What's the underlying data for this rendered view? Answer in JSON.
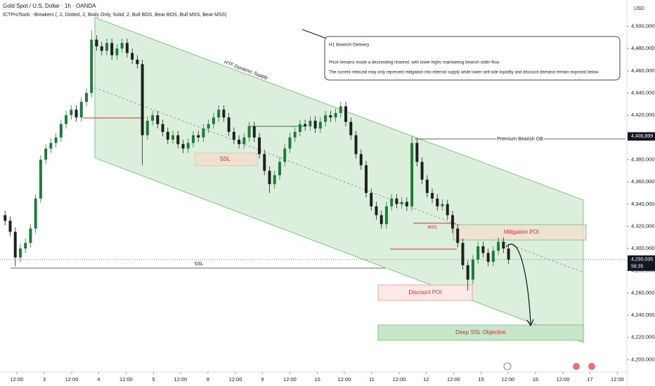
{
  "chart_data": {
    "type": "candlestick",
    "title": "Gold Spot / U.S. Dollar · 1h · OANDA",
    "subtitle": "ICTProTools - Breakers (, 2, Dotted, 2, Body Only, Solid, 2, Bull BOS, Bear BOS, Bull MSS, Bear MSS)",
    "currency": "USD",
    "up_color": "#1e7b3c",
    "down_color": "#1f1f1f",
    "open": [
      4330,
      4325,
      4315,
      4292,
      4300,
      4305,
      4318,
      4345,
      4380,
      4390,
      4395,
      4400,
      4412,
      4420,
      4425,
      4418,
      4432,
      4440,
      4488,
      4482,
      4478,
      4485,
      4474,
      4480,
      4485,
      4476,
      4470,
      4466,
      4402,
      4415,
      4420,
      4412,
      4405,
      4398,
      4402,
      4394,
      4390,
      4395,
      4402,
      4400,
      4408,
      4412,
      4418,
      4425,
      4418,
      4405,
      4398,
      4394,
      4400,
      4410,
      4400,
      4385,
      4370,
      4358,
      4366,
      4378,
      4390,
      4400,
      4405,
      4412,
      4410,
      4415,
      4408,
      4414,
      4420,
      4418,
      4422,
      4428,
      4414,
      4402,
      4385,
      4375,
      4350,
      4338,
      4330,
      4322,
      4338,
      4345,
      4340,
      4342,
      4338,
      4395,
      4378,
      4362,
      4350,
      4345,
      4338,
      4340,
      4330,
      4318,
      4305,
      4285,
      4272,
      4290,
      4302,
      4296,
      4288,
      4298,
      4306,
      4300
    ],
    "high": [
      4334,
      4329,
      4319,
      4304,
      4309,
      4322,
      4349,
      4384,
      4394,
      4399,
      4404,
      4416,
      4424,
      4429,
      4429,
      4436,
      4444,
      4496,
      4492,
      4486,
      4489,
      4489,
      4484,
      4489,
      4489,
      4480,
      4474,
      4470,
      4419,
      4424,
      4424,
      4416,
      4409,
      4406,
      4406,
      4398,
      4399,
      4406,
      4406,
      4412,
      4416,
      4422,
      4429,
      4429,
      4422,
      4409,
      4402,
      4404,
      4414,
      4414,
      4404,
      4389,
      4374,
      4370,
      4382,
      4394,
      4404,
      4409,
      4416,
      4416,
      4419,
      4419,
      4418,
      4424,
      4424,
      4426,
      4432,
      4432,
      4418,
      4406,
      4389,
      4379,
      4354,
      4342,
      4334,
      4342,
      4349,
      4349,
      4346,
      4346,
      4401,
      4399,
      4382,
      4366,
      4354,
      4349,
      4344,
      4344,
      4334,
      4322,
      4309,
      4289,
      4294,
      4306,
      4306,
      4300,
      4302,
      4310,
      4310,
      4304
    ],
    "low": [
      4321,
      4311,
      4284,
      4288,
      4296,
      4301,
      4314,
      4341,
      4376,
      4386,
      4391,
      4396,
      4408,
      4416,
      4414,
      4414,
      4428,
      4436,
      4478,
      4474,
      4474,
      4470,
      4470,
      4476,
      4472,
      4466,
      4462,
      4375,
      4398,
      4411,
      4408,
      4401,
      4394,
      4394,
      4390,
      4386,
      4386,
      4391,
      4396,
      4396,
      4404,
      4408,
      4414,
      4414,
      4401,
      4394,
      4390,
      4390,
      4396,
      4396,
      4381,
      4366,
      4350,
      4354,
      4362,
      4374,
      4386,
      4396,
      4401,
      4406,
      4406,
      4404,
      4404,
      4410,
      4414,
      4414,
      4418,
      4410,
      4398,
      4381,
      4371,
      4346,
      4334,
      4326,
      4318,
      4318,
      4334,
      4336,
      4336,
      4334,
      4334,
      4374,
      4358,
      4346,
      4341,
      4334,
      4334,
      4326,
      4314,
      4301,
      4281,
      4262,
      4268,
      4286,
      4292,
      4284,
      4284,
      4294,
      4296,
      4286
    ],
    "close": [
      4325,
      4315,
      4292,
      4300,
      4305,
      4318,
      4345,
      4380,
      4390,
      4395,
      4400,
      4412,
      4420,
      4425,
      4418,
      4432,
      4440,
      4488,
      4482,
      4478,
      4485,
      4474,
      4480,
      4485,
      4476,
      4470,
      4466,
      4402,
      4415,
      4420,
      4412,
      4405,
      4398,
      4402,
      4394,
      4390,
      4395,
      4402,
      4400,
      4408,
      4412,
      4418,
      4425,
      4418,
      4405,
      4398,
      4394,
      4400,
      4410,
      4400,
      4385,
      4370,
      4358,
      4366,
      4378,
      4390,
      4400,
      4405,
      4412,
      4410,
      4415,
      4408,
      4414,
      4420,
      4418,
      4422,
      4428,
      4414,
      4402,
      4385,
      4375,
      4350,
      4338,
      4330,
      4322,
      4338,
      4345,
      4340,
      4342,
      4338,
      4395,
      4378,
      4362,
      4350,
      4345,
      4338,
      4340,
      4330,
      4318,
      4305,
      4285,
      4272,
      4290,
      4302,
      4296,
      4288,
      4298,
      4306,
      4300,
      4290
    ],
    "xlim": [
      -1,
      122
    ],
    "xticks": [
      {
        "value": 2.3,
        "label": "12:00"
      },
      {
        "value": 7.7,
        "label": "3"
      },
      {
        "value": 13.1,
        "label": "12:00"
      },
      {
        "value": 18.4,
        "label": "4"
      },
      {
        "value": 23.8,
        "label": "12:00"
      },
      {
        "value": 29.2,
        "label": "5"
      },
      {
        "value": 34.5,
        "label": "12:00"
      },
      {
        "value": 39.9,
        "label": "8"
      },
      {
        "value": 45.3,
        "label": "12:00"
      },
      {
        "value": 50.6,
        "label": "9"
      },
      {
        "value": 56.0,
        "label": "12:00"
      },
      {
        "value": 61.4,
        "label": "10"
      },
      {
        "value": 66.7,
        "label": "12:00"
      },
      {
        "value": 72.1,
        "label": "11"
      },
      {
        "value": 77.5,
        "label": "12:00"
      },
      {
        "value": 82.8,
        "label": "12"
      },
      {
        "value": 88.2,
        "label": "12:00"
      },
      {
        "value": 93.6,
        "label": "15"
      },
      {
        "value": 98.9,
        "label": "12:00"
      },
      {
        "value": 104.3,
        "label": "16"
      },
      {
        "value": 109.7,
        "label": "12:00"
      },
      {
        "value": 115.0,
        "label": "17"
      },
      {
        "value": 120.4,
        "label": "12:00"
      }
    ],
    "ylim": [
      4195.2,
      4523.7
    ],
    "yticks": [
      {
        "value": 4200,
        "label": "4,200,000"
      },
      {
        "value": 4220,
        "label": "4,220,000"
      },
      {
        "value": 4240,
        "label": "4,240,000"
      },
      {
        "value": 4260,
        "label": "4,260,000"
      },
      {
        "value": 4280,
        "label": "4,280,000"
      },
      {
        "value": 4300,
        "label": "4,300,000"
      },
      {
        "value": 4320,
        "label": "4,320,000"
      },
      {
        "value": 4340,
        "label": "4,340,000"
      },
      {
        "value": 4360,
        "label": "4,360,000"
      },
      {
        "value": 4380,
        "label": "4,380,000"
      },
      {
        "value": 4400,
        "label": "4,400,000"
      },
      {
        "value": 4420,
        "label": "4,420,000"
      },
      {
        "value": 4440,
        "label": "4,440,000"
      },
      {
        "value": 4460,
        "label": "4,460,000"
      },
      {
        "value": 4480,
        "label": "4,480,000"
      },
      {
        "value": 4500,
        "label": "4,500,000"
      }
    ],
    "price_labels": [
      {
        "value": 4400.899,
        "label": "4,400,899"
      },
      {
        "value": 4290.035,
        "label": "4,290,035",
        "countdown": "56:35"
      }
    ],
    "annotations": {
      "channel": "HTF Dynamic Supply",
      "ssl_box": "SSL",
      "ssl_line": "SSL",
      "mss": "MSS",
      "premium": "Premium Bearish OB",
      "mitigation": "Mitigation POI",
      "discount": "Discount POI",
      "deep": "Deep SSL Objective",
      "callout_title": "H1 Bearish Delivery",
      "callout_line1": "Price remains inside a descending channel, with lower highs maintaining bearish order flow.",
      "callout_line2": "The current rebound may only represent mitigation into internal supply while lower sell-side liquidity and discount demand remain exposed below."
    }
  }
}
